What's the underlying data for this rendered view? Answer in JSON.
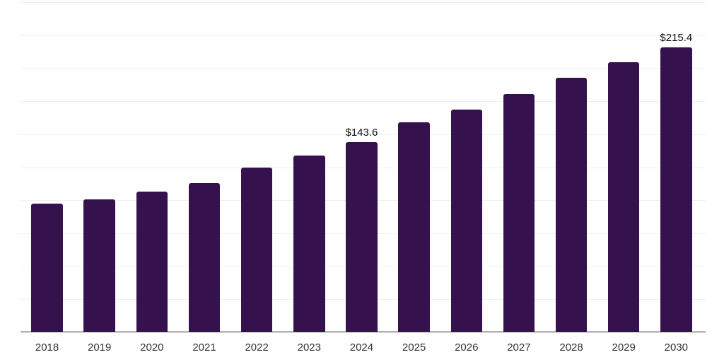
{
  "chart_data": {
    "type": "bar",
    "title": "",
    "xlabel": "",
    "ylabel": "",
    "categories": [
      "2018",
      "2019",
      "2020",
      "2021",
      "2022",
      "2023",
      "2024",
      "2025",
      "2026",
      "2027",
      "2028",
      "2029",
      "2030"
    ],
    "values": [
      96.9,
      99.9,
      105.8,
      112.4,
      124.0,
      133.1,
      143.6,
      158.4,
      168.2,
      179.7,
      192.0,
      203.9,
      215.4
    ],
    "value_labels": {
      "2024": "$143.6",
      "2030": "$215.4"
    },
    "ylim": [
      0,
      250
    ],
    "gridline_step": 25,
    "grid_on": true,
    "legend_position": "none",
    "colors": {
      "bar": "#35124D",
      "gridline": "#f0f0f0",
      "axis_line": "#2b2b2b",
      "tick_label": "#333333",
      "value_label": "#111111",
      "background": "#ffffff"
    }
  }
}
